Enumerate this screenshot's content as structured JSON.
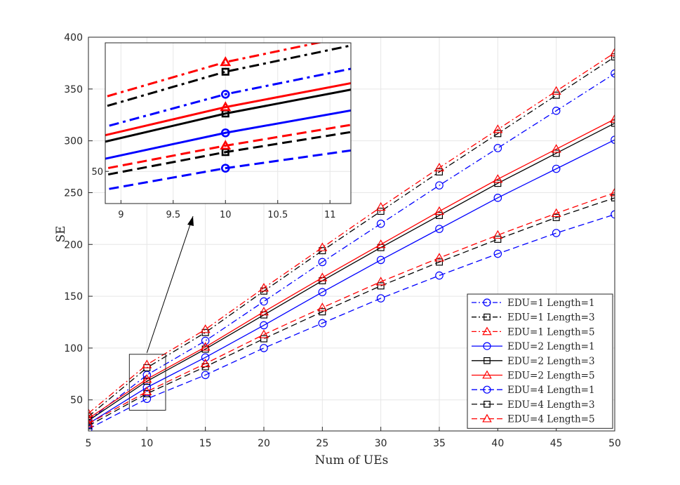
{
  "chart_data": {
    "type": "line",
    "xlabel": "Num of UEs",
    "ylabel": "SE",
    "xlim": [
      5,
      50
    ],
    "ylim": [
      20,
      400
    ],
    "x": [
      5,
      10,
      15,
      20,
      25,
      30,
      35,
      40,
      45,
      50
    ],
    "x_ticks": [
      "5",
      "10",
      "15",
      "20",
      "25",
      "30",
      "35",
      "40",
      "45",
      "50"
    ],
    "y_ticks": [
      "50",
      "100",
      "150",
      "200",
      "250",
      "300",
      "350",
      "400"
    ],
    "grid": true,
    "legend_position": "bottom-right",
    "series": [
      {
        "name": "EDU=1 Length=1",
        "color": "#0000ff",
        "dash": "dashdot",
        "marker": "circle",
        "values": [
          30,
          74,
          107,
          145,
          183,
          220,
          257,
          293,
          329,
          365
        ]
      },
      {
        "name": "EDU=1 Length=3",
        "color": "#000000",
        "dash": "dashdot",
        "marker": "square",
        "values": [
          34,
          81,
          115,
          155,
          194,
          232,
          270,
          307,
          344,
          381
        ]
      },
      {
        "name": "EDU=1 Length=5",
        "color": "#ff0000",
        "dash": "dashdot",
        "marker": "triangle",
        "values": [
          37,
          84,
          118,
          158,
          197,
          236,
          274,
          311,
          348,
          385
        ]
      },
      {
        "name": "EDU=2 Length=1",
        "color": "#0000ff",
        "dash": "solid",
        "marker": "circle",
        "values": [
          27,
          62,
          91,
          122,
          154,
          185,
          215,
          245,
          273,
          301
        ]
      },
      {
        "name": "EDU=2 Length=3",
        "color": "#000000",
        "dash": "solid",
        "marker": "square",
        "values": [
          30,
          68,
          99,
          132,
          165,
          197,
          228,
          259,
          288,
          317
        ]
      },
      {
        "name": "EDU=2 Length=5",
        "color": "#ff0000",
        "dash": "solid",
        "marker": "triangle",
        "values": [
          32,
          70,
          101,
          135,
          168,
          200,
          232,
          263,
          292,
          321
        ]
      },
      {
        "name": "EDU=4 Length=1",
        "color": "#0000ff",
        "dash": "dashed",
        "marker": "circle",
        "values": [
          22,
          51,
          74,
          100,
          124,
          148,
          170,
          191,
          211,
          229
        ]
      },
      {
        "name": "EDU=4 Length=3",
        "color": "#000000",
        "dash": "dashed",
        "marker": "square",
        "values": [
          25,
          56,
          82,
          109,
          135,
          160,
          183,
          205,
          226,
          245
        ]
      },
      {
        "name": "EDU=4 Length=5",
        "color": "#ff0000",
        "dash": "dashed",
        "marker": "triangle",
        "values": [
          27,
          58,
          85,
          113,
          139,
          164,
          187,
          209,
          230,
          250
        ]
      }
    ],
    "inset": {
      "xlim": [
        8.85,
        11.2
      ],
      "ylim": [
        40,
        90
      ],
      "x_ticks": [
        "9",
        "9.5",
        "10",
        "10.5",
        "11"
      ],
      "y_ticks": [
        "50"
      ],
      "zoom_box": {
        "x": [
          8.5,
          11.6
        ],
        "y": [
          40,
          94
        ]
      }
    }
  }
}
